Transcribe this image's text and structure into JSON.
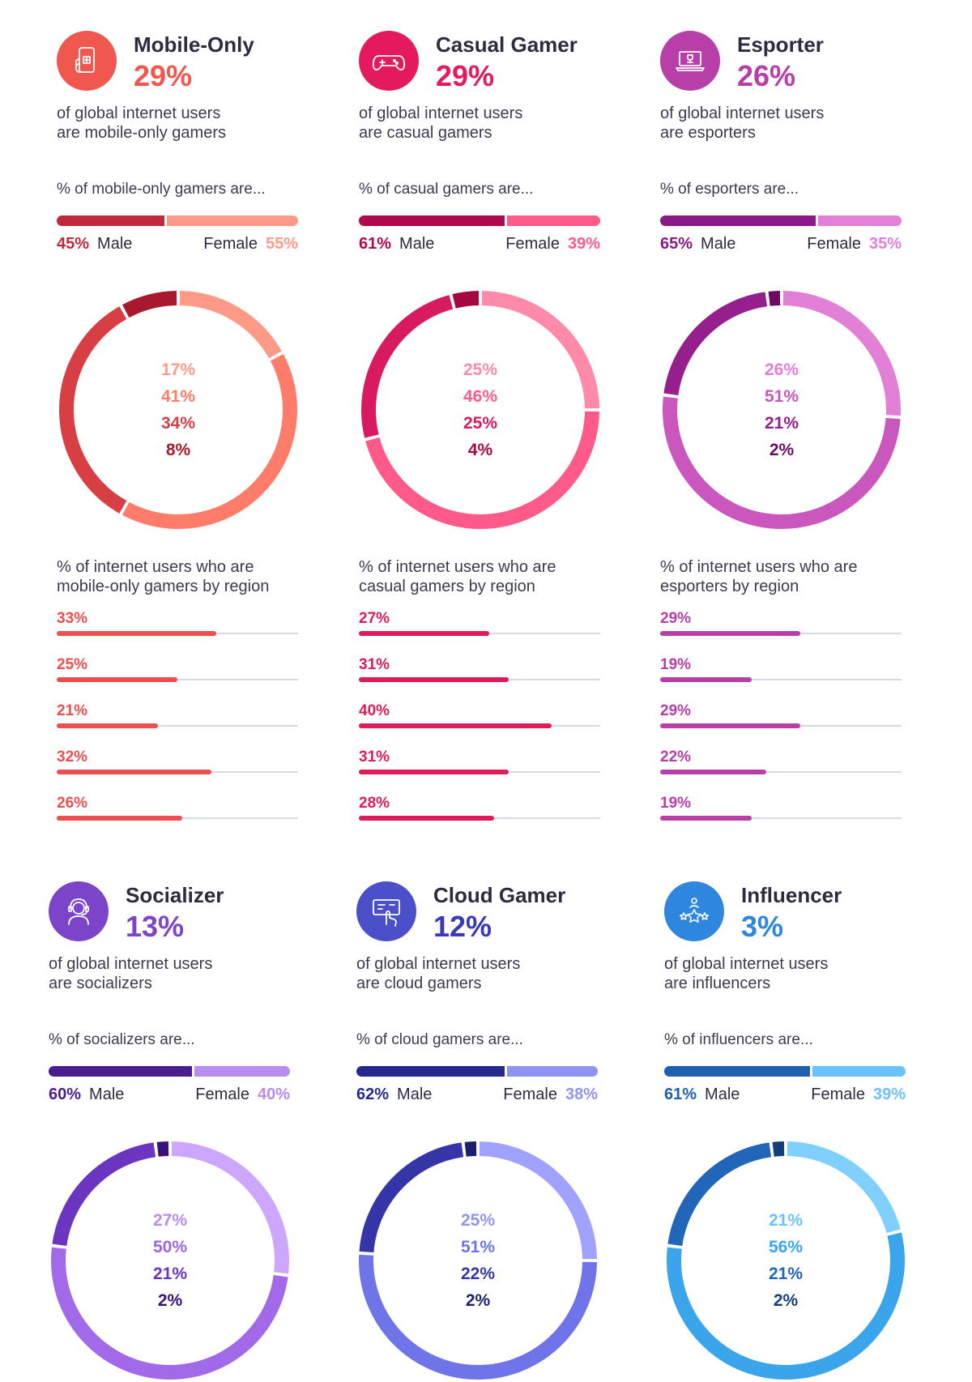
{
  "cards": [
    {
      "name": "Mobile-Only",
      "pct": "29%",
      "desc": [
        "of global internet users",
        "are mobile-only gamers"
      ],
      "gender_title": "% of mobile-only gamers are...",
      "male_pct": "45%",
      "female_pct": "55%",
      "male_label": "Male",
      "female_label": "Female",
      "male_value": 45,
      "female_value": 55,
      "colors": {
        "accent": "#f0584f",
        "male": "#bf2a3a",
        "female": "#ff9a88",
        "icon_bg": "#f0584f"
      },
      "donut_labels": [
        "17%",
        "41%",
        "34%",
        "8%"
      ],
      "donut_values": [
        17,
        41,
        34,
        8
      ],
      "donut_colors": [
        "#ff9a88",
        "#ff7c6a",
        "#d83f45",
        "#a8192d"
      ],
      "donut_label_colors": [
        "#ff9a88",
        "#ff7c6a",
        "#d83f45",
        "#a8192d"
      ],
      "region_title": [
        "% of internet users who are",
        "mobile-only gamers by region"
      ],
      "region_labels": [
        "33%",
        "25%",
        "21%",
        "32%",
        "26%"
      ],
      "region_values": [
        33,
        25,
        21,
        32,
        26
      ],
      "region_color": "#ef4e51",
      "icon": "mobile-gamepad-icon"
    },
    {
      "name": "Casual Gamer",
      "pct": "29%",
      "desc": [
        "of global internet users",
        "are casual gamers"
      ],
      "gender_title": "% of casual gamers are...",
      "male_pct": "61%",
      "female_pct": "39%",
      "male_label": "Male",
      "female_label": "Female",
      "male_value": 61,
      "female_value": 39,
      "colors": {
        "accent": "#e5195d",
        "male": "#b0084d",
        "female": "#ff5a8a",
        "icon_bg": "#e5195d"
      },
      "donut_labels": [
        "25%",
        "46%",
        "25%",
        "4%"
      ],
      "donut_values": [
        25,
        46,
        25,
        4
      ],
      "donut_colors": [
        "#ff8aa9",
        "#ff5a8a",
        "#d81b60",
        "#a5073f"
      ],
      "donut_label_colors": [
        "#ff8aa9",
        "#ff5a8a",
        "#d81b60",
        "#a5073f"
      ],
      "region_title": [
        "% of internet users who are",
        "casual gamers by region"
      ],
      "region_labels": [
        "27%",
        "31%",
        "40%",
        "31%",
        "28%"
      ],
      "region_values": [
        27,
        31,
        40,
        31,
        28
      ],
      "region_color": "#e01b5a",
      "icon": "gamepad-icon"
    },
    {
      "name": "Esporter",
      "pct": "26%",
      "desc": [
        "of global internet users",
        "are esporters"
      ],
      "gender_title": "% of esporters are...",
      "male_pct": "65%",
      "female_pct": "35%",
      "male_label": "Male",
      "female_label": "Female",
      "male_value": 65,
      "female_value": 35,
      "colors": {
        "accent": "#b83fa8",
        "male": "#8a1a86",
        "female": "#e27fd6",
        "icon_bg": "#b83fa8"
      },
      "donut_labels": [
        "26%",
        "51%",
        "21%",
        "2%"
      ],
      "donut_values": [
        26,
        51,
        21,
        2
      ],
      "donut_colors": [
        "#e27fd6",
        "#c957bd",
        "#951f8d",
        "#6a0a62"
      ],
      "donut_label_colors": [
        "#e27fd6",
        "#c957bd",
        "#951f8d",
        "#6a0a62"
      ],
      "region_title": [
        "% of internet users who are",
        "esporters by region"
      ],
      "region_labels": [
        "29%",
        "19%",
        "29%",
        "22%",
        "19%"
      ],
      "region_values": [
        29,
        19,
        29,
        22,
        19
      ],
      "region_color": "#b83fa8",
      "icon": "laptop-trophy-icon"
    },
    {
      "name": "Socializer",
      "pct": "13%",
      "desc": [
        "of global internet users",
        "are socializers"
      ],
      "gender_title": "% of socializers are...",
      "male_pct": "60%",
      "female_pct": "40%",
      "male_label": "Male",
      "female_label": "Female",
      "male_value": 60,
      "female_value": 40,
      "colors": {
        "accent": "#7c44c9",
        "male": "#4a1d8e",
        "female": "#b98cf0",
        "icon_bg": "#7c44c9"
      },
      "donut_labels": [
        "27%",
        "50%",
        "21%",
        "2%"
      ],
      "donut_values": [
        27,
        50,
        21,
        2
      ],
      "donut_colors": [
        "#cda6ff",
        "#a26ae8",
        "#6b35c0",
        "#3a1178"
      ],
      "donut_label_colors": [
        "#b98cf0",
        "#9c66e0",
        "#6b35c0",
        "#3a1178"
      ],
      "icon": "headset-user-icon"
    },
    {
      "name": "Cloud Gamer",
      "pct": "12%",
      "desc": [
        "of global internet users",
        "are cloud gamers"
      ],
      "gender_title": "% of cloud gamers are...",
      "male_pct": "62%",
      "female_pct": "38%",
      "male_label": "Male",
      "female_label": "Female",
      "male_value": 62,
      "female_value": 38,
      "colors": {
        "accent": "#3a3ab8",
        "male": "#262a8c",
        "female": "#8f94f3",
        "icon_bg": "#4b4fc9"
      },
      "donut_labels": [
        "25%",
        "51%",
        "22%",
        "2%"
      ],
      "donut_values": [
        25,
        51,
        22,
        2
      ],
      "donut_colors": [
        "#9fa3ff",
        "#6f74e8",
        "#3535a8",
        "#1c1f6e"
      ],
      "donut_label_colors": [
        "#8f94f3",
        "#6f74e8",
        "#3535a8",
        "#1c1f6e"
      ],
      "icon": "touch-screen-icon"
    },
    {
      "name": "Influencer",
      "pct": "3%",
      "desc": [
        "of global internet users",
        "are influencers"
      ],
      "gender_title": "% of influencers are...",
      "male_pct": "61%",
      "female_pct": "39%",
      "male_label": "Male",
      "female_label": "Female",
      "male_value": 61,
      "female_value": 39,
      "colors": {
        "accent": "#2e86de",
        "male": "#1f5fae",
        "female": "#6cc2ff",
        "icon_bg": "#2e86de"
      },
      "donut_labels": [
        "21%",
        "56%",
        "21%",
        "2%"
      ],
      "donut_values": [
        21,
        56,
        21,
        2
      ],
      "donut_colors": [
        "#7fd0ff",
        "#3aa5ea",
        "#2166b8",
        "#123f7a"
      ],
      "donut_label_colors": [
        "#6cc2ff",
        "#3aa5ea",
        "#2166b8",
        "#123f7a"
      ],
      "icon": "stars-person-icon"
    }
  ],
  "chart_data": [
    {
      "type": "bar",
      "title": "% of mobile-only gamers are...",
      "categories": [
        "Male",
        "Female"
      ],
      "values": [
        45,
        55
      ]
    },
    {
      "type": "pie",
      "categories": [
        "",
        "",
        "",
        ""
      ],
      "values": [
        17,
        41,
        34,
        8
      ]
    },
    {
      "type": "bar",
      "title": "% of internet users who are mobile-only gamers by region",
      "values": [
        33,
        25,
        21,
        32,
        26
      ]
    },
    {
      "type": "bar",
      "title": "% of casual gamers are...",
      "categories": [
        "Male",
        "Female"
      ],
      "values": [
        61,
        39
      ]
    },
    {
      "type": "pie",
      "categories": [
        "",
        "",
        "",
        ""
      ],
      "values": [
        25,
        46,
        25,
        4
      ]
    },
    {
      "type": "bar",
      "title": "% of internet users who are casual gamers by region",
      "values": [
        27,
        31,
        40,
        31,
        28
      ]
    },
    {
      "type": "bar",
      "title": "% of esporters are...",
      "categories": [
        "Male",
        "Female"
      ],
      "values": [
        65,
        35
      ]
    },
    {
      "type": "pie",
      "categories": [
        "",
        "",
        "",
        ""
      ],
      "values": [
        26,
        51,
        21,
        2
      ]
    },
    {
      "type": "bar",
      "title": "% of internet users who are esporters by region",
      "values": [
        29,
        19,
        29,
        22,
        19
      ]
    },
    {
      "type": "bar",
      "title": "% of socializers are...",
      "categories": [
        "Male",
        "Female"
      ],
      "values": [
        60,
        40
      ]
    },
    {
      "type": "pie",
      "categories": [
        "",
        "",
        "",
        ""
      ],
      "values": [
        27,
        50,
        21,
        2
      ]
    },
    {
      "type": "bar",
      "title": "% of cloud gamers are...",
      "categories": [
        "Male",
        "Female"
      ],
      "values": [
        62,
        38
      ]
    },
    {
      "type": "pie",
      "categories": [
        "",
        "",
        "",
        ""
      ],
      "values": [
        25,
        51,
        22,
        2
      ]
    },
    {
      "type": "bar",
      "title": "% of influencers are...",
      "categories": [
        "Male",
        "Female"
      ],
      "values": [
        61,
        39
      ]
    },
    {
      "type": "pie",
      "categories": [
        "",
        "",
        "",
        ""
      ],
      "values": [
        21,
        56,
        21,
        2
      ]
    }
  ]
}
